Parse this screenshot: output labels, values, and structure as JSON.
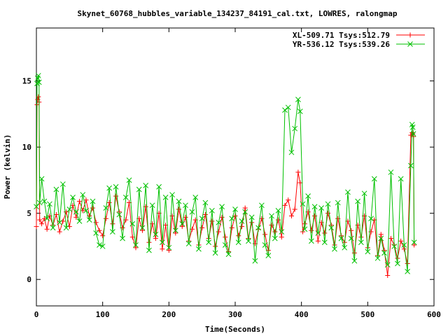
{
  "chart_data": {
    "type": "line",
    "title": "Skynet_60768_hubbles_variable_134237_84191_cal.txt, LOWRES, ralongmap",
    "xlabel": "Time(Seconds)",
    "ylabel": "Power (kelvin)",
    "xlim": [
      0,
      600
    ],
    "ylim": [
      -2,
      19
    ],
    "xticks": [
      0,
      100,
      200,
      300,
      400,
      500,
      600
    ],
    "yticks": [
      0,
      5,
      10,
      15
    ],
    "grid": false,
    "legend_position": "top-right",
    "series": [
      {
        "name": "XL-509.71 Tsys:512.79",
        "color": "#ff0000",
        "marker": "plus",
        "x": [
          0,
          1,
          2,
          3,
          4,
          5,
          8,
          12,
          16,
          20,
          25,
          30,
          35,
          40,
          45,
          50,
          55,
          60,
          65,
          70,
          75,
          80,
          85,
          90,
          95,
          100,
          105,
          110,
          115,
          120,
          125,
          130,
          135,
          140,
          145,
          150,
          155,
          160,
          165,
          170,
          175,
          180,
          185,
          190,
          195,
          200,
          205,
          210,
          215,
          220,
          225,
          230,
          235,
          240,
          245,
          250,
          255,
          260,
          265,
          270,
          275,
          280,
          285,
          290,
          295,
          300,
          305,
          310,
          315,
          320,
          325,
          330,
          335,
          340,
          345,
          350,
          355,
          360,
          365,
          370,
          375,
          380,
          385,
          390,
          395,
          398,
          402,
          405,
          410,
          415,
          420,
          425,
          430,
          435,
          440,
          445,
          450,
          455,
          460,
          465,
          470,
          475,
          480,
          485,
          490,
          495,
          500,
          505,
          510,
          515,
          520,
          525,
          530,
          535,
          540,
          545,
          550,
          555,
          560,
          565,
          567,
          568,
          569,
          570
        ],
        "values": [
          4.0,
          13.2,
          13.6,
          13.8,
          13.4,
          4.5,
          4.2,
          4.6,
          3.8,
          4.8,
          4.1,
          4.9,
          3.6,
          4.4,
          5.1,
          4.0,
          5.6,
          4.7,
          5.9,
          5.2,
          6.0,
          4.8,
          5.4,
          4.3,
          3.7,
          3.3,
          4.6,
          5.8,
          4.2,
          6.3,
          5.1,
          3.9,
          4.5,
          5.8,
          3.2,
          2.4,
          4.6,
          3.7,
          5.5,
          2.8,
          4.2,
          3.1,
          5.0,
          2.3,
          4.1,
          2.2,
          4.8,
          3.5,
          5.3,
          4.0,
          4.7,
          2.9,
          3.8,
          4.5,
          2.6,
          3.9,
          4.9,
          3.1,
          4.4,
          2.5,
          3.6,
          4.7,
          3.2,
          2.1,
          3.9,
          4.8,
          3.3,
          4.0,
          5.4,
          3.1,
          4.3,
          2.7,
          3.8,
          4.6,
          3.4,
          2.2,
          4.1,
          3.6,
          4.5,
          3.2,
          5.6,
          6.0,
          4.8,
          5.3,
          8.1,
          7.3,
          3.6,
          4.2,
          5.1,
          3.7,
          4.8,
          2.9,
          4.3,
          3.5,
          5.0,
          4.1,
          2.6,
          4.6,
          3.3,
          2.8,
          4.4,
          3.7,
          2.0,
          4.1,
          3.2,
          4.8,
          2.4,
          3.6,
          4.5,
          1.8,
          3.4,
          2.2,
          0.3,
          3.1,
          2.6,
          1.6,
          2.9,
          2.3,
          1.2,
          10.9,
          11.1,
          11.0,
          10.8,
          2.6
        ]
      },
      {
        "name": "YR-536.12 Tsys:539.26",
        "color": "#00c000",
        "marker": "x",
        "x": [
          0,
          1,
          2,
          3,
          4,
          5,
          8,
          12,
          16,
          20,
          25,
          30,
          35,
          40,
          45,
          50,
          55,
          60,
          65,
          70,
          75,
          80,
          85,
          90,
          95,
          100,
          105,
          110,
          115,
          120,
          125,
          130,
          135,
          140,
          145,
          150,
          155,
          160,
          165,
          170,
          175,
          180,
          185,
          190,
          195,
          200,
          205,
          210,
          215,
          220,
          225,
          230,
          235,
          240,
          245,
          250,
          255,
          260,
          265,
          270,
          275,
          280,
          285,
          290,
          295,
          300,
          305,
          310,
          315,
          320,
          325,
          330,
          335,
          340,
          345,
          350,
          355,
          360,
          365,
          370,
          375,
          380,
          385,
          390,
          395,
          398,
          402,
          405,
          410,
          415,
          420,
          425,
          430,
          435,
          440,
          445,
          450,
          455,
          460,
          465,
          470,
          475,
          480,
          485,
          490,
          495,
          500,
          505,
          510,
          515,
          520,
          525,
          530,
          535,
          540,
          545,
          550,
          555,
          560,
          565,
          567,
          568,
          569,
          570
        ],
        "values": [
          5.5,
          14.8,
          15.2,
          15.4,
          14.9,
          5.8,
          7.6,
          5.9,
          4.6,
          5.7,
          3.9,
          6.8,
          4.3,
          7.2,
          3.9,
          5.3,
          6.2,
          5.1,
          4.4,
          6.4,
          5.2,
          4.5,
          5.9,
          3.5,
          2.6,
          2.5,
          5.4,
          6.9,
          3.6,
          7.0,
          4.9,
          3.1,
          6.2,
          7.5,
          4.2,
          2.6,
          6.8,
          3.9,
          7.1,
          2.2,
          5.6,
          3.4,
          7.0,
          2.8,
          6.2,
          2.4,
          6.4,
          3.7,
          5.9,
          4.2,
          5.6,
          2.7,
          5.1,
          6.2,
          2.3,
          4.6,
          5.8,
          2.8,
          5.2,
          2.0,
          4.3,
          5.5,
          2.6,
          1.9,
          4.6,
          5.3,
          2.8,
          4.4,
          5.1,
          2.9,
          4.7,
          1.4,
          3.9,
          5.6,
          2.6,
          1.8,
          4.8,
          3.1,
          5.2,
          3.6,
          12.8,
          13.0,
          9.6,
          11.4,
          13.6,
          12.7,
          5.7,
          3.8,
          6.3,
          2.9,
          5.5,
          3.5,
          5.4,
          2.8,
          5.7,
          3.9,
          2.3,
          5.8,
          3.1,
          2.4,
          6.6,
          3.1,
          1.4,
          5.9,
          2.8,
          6.5,
          2.1,
          4.6,
          7.6,
          1.6,
          3.1,
          2.0,
          1.1,
          8.1,
          2.5,
          1.2,
          7.6,
          2.6,
          0.6,
          8.6,
          11.7,
          11.5,
          11.0,
          2.8
        ]
      }
    ]
  }
}
